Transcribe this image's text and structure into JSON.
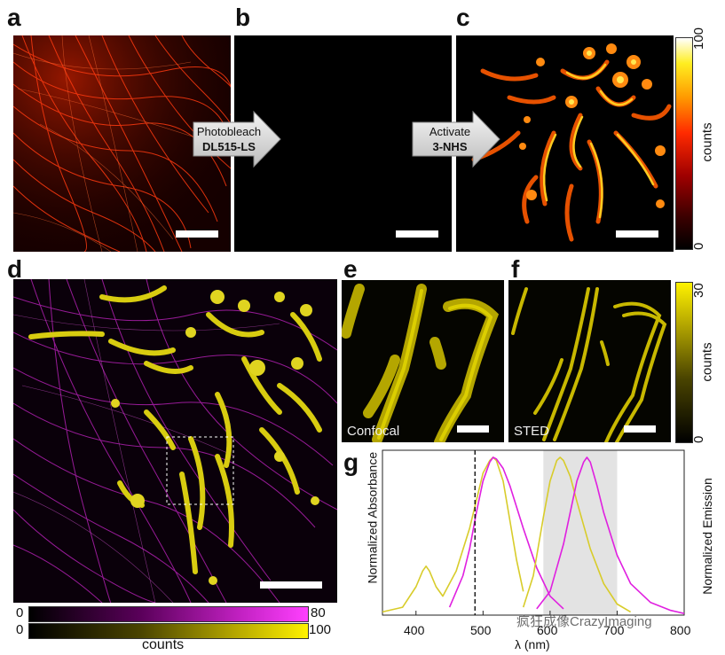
{
  "panels": {
    "a": "a",
    "b": "b",
    "c": "c",
    "d": "d",
    "e": "e",
    "f": "f",
    "g": "g"
  },
  "arrow1": {
    "line1": "Photobleach",
    "line2": "DL515-LS"
  },
  "arrow2": {
    "line1": "Activate",
    "line2": "3-NHS"
  },
  "colorbar_top": {
    "max": "100",
    "min": "0",
    "label": "counts"
  },
  "colorbar_ef": {
    "max": "30",
    "min": "0",
    "label": "counts"
  },
  "bottom_bars": {
    "magenta": {
      "min": "0",
      "max": "80"
    },
    "yellow": {
      "min": "0",
      "max": "100"
    },
    "label": "counts"
  },
  "inset_labels": {
    "e": "Confocal",
    "f": "STED"
  },
  "chart_data": {
    "type": "line",
    "xlabel": "λ (nm)",
    "ylabel_left": "Normalized Absorbance",
    "ylabel_right": "Normalized Emission",
    "xlim": [
      350,
      800
    ],
    "xticks": [
      "400",
      "500",
      "600",
      "700",
      "800"
    ],
    "dashed_line_x": 488,
    "shaded_band": [
      590,
      700
    ],
    "series": [
      {
        "color": "#d8cc2a",
        "kind": "absorbance",
        "x": [
          350,
          380,
          400,
          410,
          415,
          420,
          430,
          440,
          460,
          480,
          500,
          510,
          515,
          520,
          530,
          540,
          550,
          560
        ],
        "y": [
          0.02,
          0.05,
          0.18,
          0.28,
          0.31,
          0.28,
          0.18,
          0.12,
          0.28,
          0.55,
          0.9,
          0.98,
          1.0,
          0.98,
          0.85,
          0.6,
          0.35,
          0.15
        ]
      },
      {
        "color": "#e020e0",
        "kind": "absorbance",
        "x": [
          450,
          470,
          480,
          490,
          500,
          510,
          515,
          520,
          530,
          540,
          560,
          580,
          600,
          620
        ],
        "y": [
          0.05,
          0.25,
          0.42,
          0.65,
          0.85,
          0.97,
          1.0,
          0.99,
          0.93,
          0.82,
          0.55,
          0.3,
          0.12,
          0.04
        ]
      },
      {
        "color": "#d8cc2a",
        "kind": "emission",
        "x": [
          560,
          575,
          590,
          600,
          610,
          615,
          620,
          630,
          640,
          660,
          680,
          700,
          720
        ],
        "y": [
          0.05,
          0.25,
          0.62,
          0.85,
          0.98,
          1.0,
          0.98,
          0.88,
          0.72,
          0.42,
          0.2,
          0.07,
          0.02
        ]
      },
      {
        "color": "#e020e0",
        "kind": "emission",
        "x": [
          580,
          600,
          620,
          640,
          650,
          655,
          660,
          670,
          680,
          700,
          720,
          750,
          780,
          800
        ],
        "y": [
          0.04,
          0.15,
          0.45,
          0.85,
          0.97,
          1.0,
          0.97,
          0.82,
          0.65,
          0.38,
          0.2,
          0.08,
          0.03,
          0.01
        ]
      }
    ]
  },
  "watermark": "疯狂成像CrazyImaging"
}
